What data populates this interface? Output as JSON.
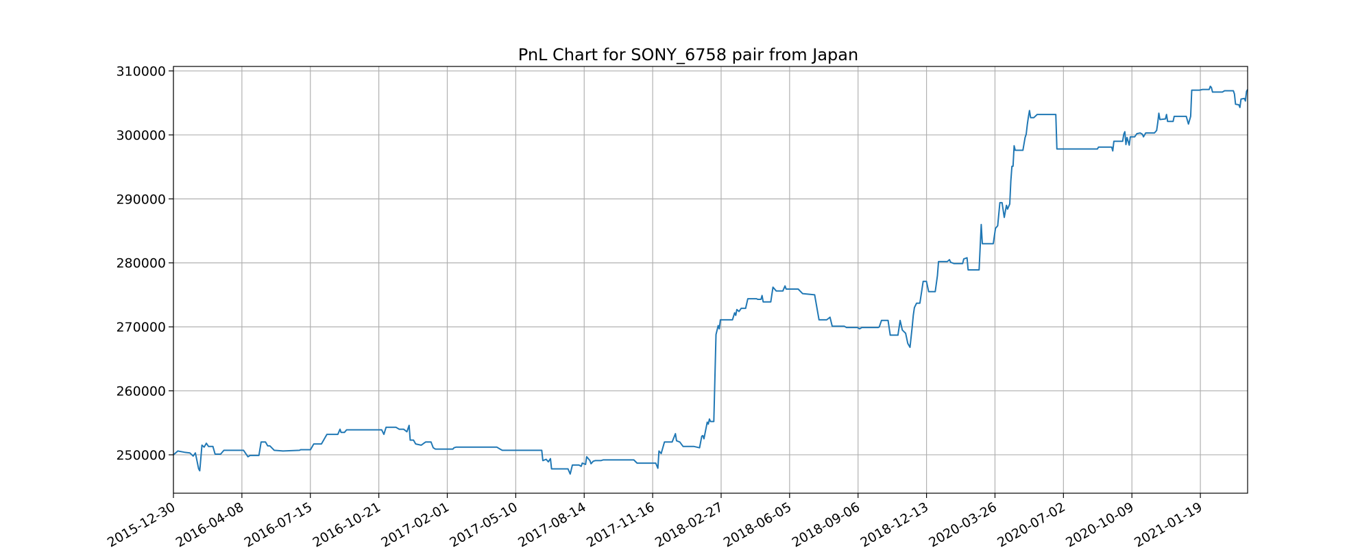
{
  "chart_data": {
    "type": "line",
    "title": "PnL Chart for SONY_6758 pair from Japan",
    "xlabel": "",
    "ylabel": "",
    "ylim": [
      244000,
      310700
    ],
    "y_ticks": [
      250000,
      260000,
      270000,
      280000,
      290000,
      300000,
      310000
    ],
    "y_tick_labels": [
      "250000",
      "260000",
      "270000",
      "280000",
      "290000",
      "300000",
      "310000"
    ],
    "x_tick_labels": [
      "2015-12-30",
      "2016-04-08",
      "2016-07-15",
      "2016-10-21",
      "2017-02-01",
      "2017-05-10",
      "2017-08-14",
      "2017-11-16",
      "2018-02-27",
      "2018-06-05",
      "2018-09-06",
      "2018-12-13",
      "2020-03-26",
      "2020-07-02",
      "2020-10-09",
      "2021-01-19"
    ],
    "x_axis_note": "sequential trading-day index; one labelled tick every 64 points",
    "x_range": [
      0,
      980
    ],
    "grid": true,
    "legend": "none",
    "series_color": "#1f77b4",
    "series": [
      {
        "points": [
          [
            0,
            250000
          ],
          [
            4,
            250600
          ],
          [
            10,
            250400
          ],
          [
            15,
            250300
          ],
          [
            18,
            249800
          ],
          [
            20,
            250300
          ],
          [
            23,
            247800
          ],
          [
            24,
            247500
          ],
          [
            26,
            251500
          ],
          [
            28,
            251200
          ],
          [
            30,
            251800
          ],
          [
            32,
            251300
          ],
          [
            36,
            251300
          ],
          [
            38,
            250100
          ],
          [
            43,
            250100
          ],
          [
            46,
            250700
          ],
          [
            60,
            250700
          ],
          [
            64,
            250700
          ],
          [
            68,
            249700
          ],
          [
            70,
            249900
          ],
          [
            78,
            249900
          ],
          [
            80,
            252000
          ],
          [
            84,
            252000
          ],
          [
            86,
            251400
          ],
          [
            88,
            251400
          ],
          [
            92,
            250700
          ],
          [
            100,
            250600
          ],
          [
            115,
            250700
          ],
          [
            116,
            250800
          ],
          [
            125,
            250800
          ],
          [
            128,
            251700
          ],
          [
            135,
            251700
          ],
          [
            140,
            253200
          ],
          [
            150,
            253200
          ],
          [
            152,
            254000
          ],
          [
            153,
            253500
          ],
          [
            156,
            253500
          ],
          [
            158,
            253900
          ],
          [
            175,
            253900
          ],
          [
            190,
            253900
          ],
          [
            192,
            253200
          ],
          [
            194,
            254300
          ],
          [
            203,
            254300
          ],
          [
            206,
            254000
          ],
          [
            210,
            254000
          ],
          [
            213,
            253600
          ],
          [
            215,
            254600
          ],
          [
            216,
            252300
          ],
          [
            219,
            252300
          ],
          [
            221,
            251700
          ],
          [
            226,
            251500
          ],
          [
            230,
            252000
          ],
          [
            235,
            252000
          ],
          [
            237,
            251100
          ],
          [
            239,
            250900
          ],
          [
            255,
            250900
          ],
          [
            256,
            251100
          ],
          [
            258,
            251200
          ],
          [
            262,
            251200
          ],
          [
            295,
            251200
          ],
          [
            298,
            250900
          ],
          [
            300,
            250700
          ],
          [
            325,
            250700
          ],
          [
            336,
            250700
          ],
          [
            337,
            249100
          ],
          [
            340,
            249300
          ],
          [
            342,
            248900
          ],
          [
            344,
            249400
          ],
          [
            345,
            247800
          ],
          [
            360,
            247800
          ],
          [
            362,
            247000
          ],
          [
            364,
            248400
          ],
          [
            370,
            248400
          ],
          [
            372,
            248200
          ],
          [
            373,
            248700
          ],
          [
            376,
            248500
          ],
          [
            377,
            249700
          ],
          [
            380,
            249100
          ],
          [
            381,
            248600
          ],
          [
            383,
            249000
          ],
          [
            385,
            249100
          ],
          [
            390,
            249100
          ],
          [
            392,
            249200
          ],
          [
            420,
            249200
          ],
          [
            423,
            248700
          ],
          [
            440,
            248700
          ],
          [
            442,
            247900
          ],
          [
            443,
            250600
          ],
          [
            445,
            250200
          ],
          [
            448,
            252000
          ],
          [
            455,
            252000
          ],
          [
            458,
            253300
          ],
          [
            459,
            252200
          ],
          [
            462,
            252000
          ],
          [
            465,
            251300
          ],
          [
            475,
            251300
          ],
          [
            480,
            251100
          ],
          [
            482,
            252900
          ],
          [
            483,
            253000
          ],
          [
            484,
            252500
          ],
          [
            487,
            255100
          ],
          [
            488,
            254800
          ],
          [
            489,
            255600
          ],
          [
            490,
            255200
          ],
          [
            493,
            255200
          ],
          [
            494,
            262000
          ],
          [
            495,
            268800
          ],
          [
            497,
            270200
          ],
          [
            498,
            269700
          ],
          [
            499,
            271100
          ],
          [
            510,
            271100
          ],
          [
            512,
            272200
          ],
          [
            513,
            271800
          ],
          [
            514,
            272700
          ],
          [
            516,
            272400
          ],
          [
            518,
            272900
          ],
          [
            522,
            272900
          ],
          [
            524,
            274400
          ],
          [
            532,
            274400
          ],
          [
            533,
            274300
          ],
          [
            536,
            274300
          ],
          [
            537,
            274900
          ],
          [
            538,
            273900
          ],
          [
            545,
            273900
          ],
          [
            547,
            276200
          ],
          [
            550,
            275600
          ],
          [
            556,
            275600
          ],
          [
            558,
            276400
          ],
          [
            559,
            275900
          ],
          [
            570,
            275900
          ],
          [
            574,
            275200
          ],
          [
            585,
            275000
          ],
          [
            589,
            271100
          ],
          [
            596,
            271100
          ],
          [
            599,
            271500
          ],
          [
            601,
            270100
          ],
          [
            607,
            270100
          ],
          [
            612,
            270100
          ],
          [
            614,
            269900
          ],
          [
            624,
            269900
          ],
          [
            626,
            269700
          ],
          [
            628,
            269900
          ],
          [
            643,
            269900
          ],
          [
            644,
            270000
          ],
          [
            646,
            271000
          ],
          [
            652,
            271000
          ],
          [
            654,
            268700
          ],
          [
            661,
            268700
          ],
          [
            663,
            271000
          ],
          [
            665,
            269500
          ],
          [
            668,
            269000
          ],
          [
            670,
            267400
          ],
          [
            672,
            266800
          ],
          [
            674,
            270000
          ],
          [
            675,
            271800
          ],
          [
            676,
            273000
          ],
          [
            678,
            273700
          ],
          [
            681,
            273700
          ],
          [
            684,
            277100
          ],
          [
            687,
            277100
          ],
          [
            689,
            275500
          ],
          [
            695,
            275500
          ],
          [
            697,
            278000
          ],
          [
            698,
            280200
          ],
          [
            706,
            280200
          ],
          [
            708,
            280500
          ],
          [
            709,
            280100
          ],
          [
            712,
            279900
          ],
          [
            720,
            279900
          ],
          [
            721,
            280600
          ],
          [
            724,
            280800
          ],
          [
            725,
            278900
          ],
          [
            730,
            278900
          ],
          [
            735,
            278900
          ],
          [
            737,
            286000
          ],
          [
            738,
            283000
          ],
          [
            748,
            283000
          ],
          [
            750,
            285400
          ],
          [
            752,
            285800
          ],
          [
            754,
            289400
          ],
          [
            756,
            289400
          ],
          [
            758,
            287100
          ],
          [
            760,
            289000
          ],
          [
            761,
            288400
          ],
          [
            763,
            289200
          ],
          [
            764,
            292800
          ],
          [
            765,
            295100
          ],
          [
            766,
            295100
          ],
          [
            767,
            298300
          ],
          [
            768,
            297600
          ],
          [
            775,
            297600
          ],
          [
            777,
            299600
          ],
          [
            778,
            300100
          ],
          [
            779,
            301600
          ],
          [
            780,
            302800
          ],
          [
            781,
            303800
          ],
          [
            782,
            302700
          ],
          [
            785,
            302700
          ],
          [
            788,
            303200
          ],
          [
            805,
            303200
          ],
          [
            806,
            297800
          ],
          [
            820,
            297800
          ],
          [
            843,
            297800
          ],
          [
            844,
            298100
          ],
          [
            856,
            298100
          ],
          [
            857,
            297500
          ],
          [
            858,
            299000
          ],
          [
            866,
            299000
          ],
          [
            867,
            300100
          ],
          [
            868,
            300500
          ],
          [
            869,
            298500
          ],
          [
            870,
            299600
          ],
          [
            872,
            298400
          ],
          [
            873,
            299700
          ],
          [
            877,
            299700
          ],
          [
            879,
            300200
          ],
          [
            882,
            300300
          ],
          [
            884,
            300100
          ],
          [
            885,
            299700
          ],
          [
            887,
            300300
          ],
          [
            895,
            300300
          ],
          [
            897,
            300700
          ],
          [
            898,
            301900
          ],
          [
            899,
            303400
          ],
          [
            900,
            302400
          ],
          [
            905,
            302500
          ],
          [
            906,
            303200
          ],
          [
            907,
            302100
          ],
          [
            912,
            302100
          ],
          [
            913,
            302900
          ],
          [
            924,
            302900
          ],
          [
            926,
            301700
          ],
          [
            928,
            302900
          ],
          [
            929,
            307000
          ],
          [
            936,
            307000
          ],
          [
            939,
            307100
          ],
          [
            945,
            307100
          ],
          [
            946,
            307600
          ],
          [
            947,
            307400
          ],
          [
            948,
            306700
          ],
          [
            957,
            306700
          ],
          [
            959,
            306900
          ],
          [
            967,
            306900
          ],
          [
            968,
            306400
          ],
          [
            969,
            304800
          ],
          [
            972,
            304700
          ],
          [
            973,
            304300
          ],
          [
            974,
            305600
          ],
          [
            977,
            305700
          ],
          [
            978,
            305300
          ],
          [
            979,
            306800
          ],
          [
            980,
            307100
          ]
        ]
      }
    ]
  }
}
